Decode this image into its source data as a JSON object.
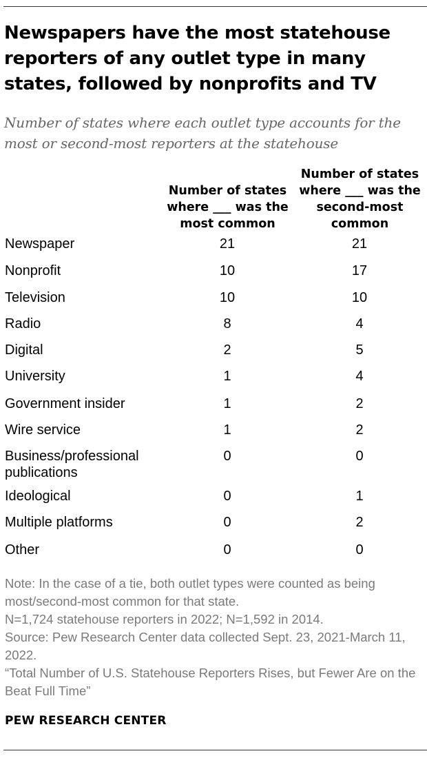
{
  "title": "Newspapers have the most statehouse reporters of any outlet type in many states, followed by nonprofits and TV",
  "subtitle": "Number of states where each outlet type accounts for the most or second-most reporters at the statehouse",
  "chart_data": {
    "type": "table",
    "columns": [
      "Number of states where ___ was the most common",
      "Number of states where ___ was the second-most common"
    ],
    "rows": [
      {
        "label": "Newspaper",
        "most": 21,
        "second": 21
      },
      {
        "label": "Nonprofit",
        "most": 10,
        "second": 17
      },
      {
        "label": "Television",
        "most": 10,
        "second": 10
      },
      {
        "label": "Radio",
        "most": 8,
        "second": 4
      },
      {
        "label": "Digital",
        "most": 2,
        "second": 5
      },
      {
        "label": "University",
        "most": 1,
        "second": 4
      },
      {
        "label": "Government insider",
        "most": 1,
        "second": 2
      },
      {
        "label": "Wire service",
        "most": 1,
        "second": 2
      },
      {
        "label": "Business/professional publications",
        "most": 0,
        "second": 0
      },
      {
        "label": "Ideological",
        "most": 0,
        "second": 1
      },
      {
        "label": "Multiple platforms",
        "most": 0,
        "second": 2
      },
      {
        "label": "Other",
        "most": 0,
        "second": 0
      }
    ]
  },
  "notes": {
    "note": "Note: In the case of a tie, both outlet types were counted as being most/second-most common for that state.",
    "sample": "N=1,724 statehouse reporters in 2022; N=1,592 in 2014.",
    "source": "Source: Pew Research Center data collected Sept. 23, 2021-March 11, 2022.",
    "report": "“Total Number of U.S. Statehouse Reporters Rises, but Fewer Are on the Beat Full Time”"
  },
  "brand": "PEW RESEARCH CENTER"
}
